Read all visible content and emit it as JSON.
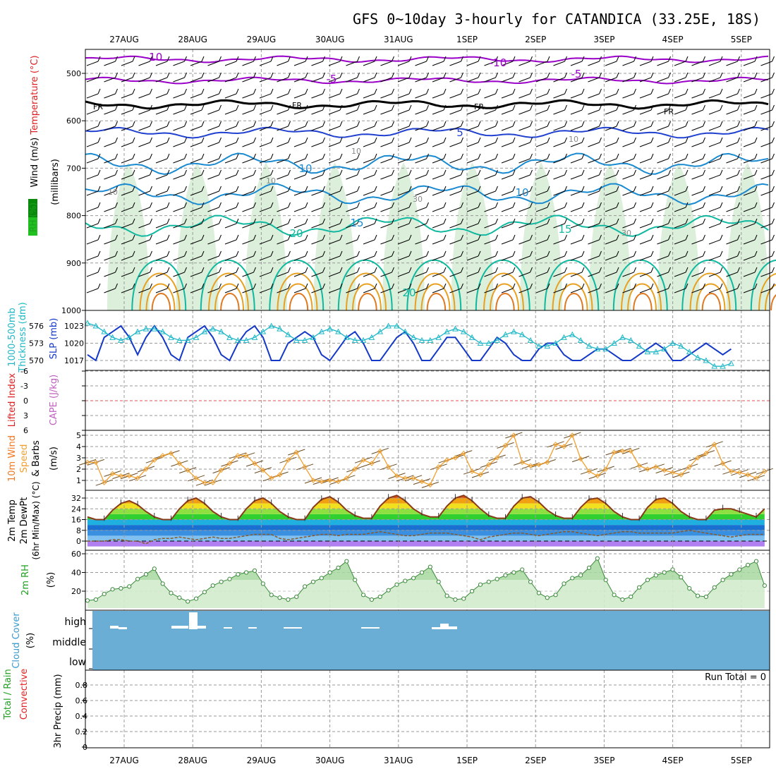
{
  "title": "GFS 0~10day 3-hourly for CATANDICA (33.25E, 18S)",
  "colors": {
    "frame": "#000000",
    "grid": "#9a9a9a",
    "purple": "#9a00c8",
    "black_contour": "#000000",
    "blue5": "#2040d0",
    "blue10": "#1a8ad0",
    "teal": "#10b8a0",
    "orange": "#e8a020",
    "rh_fill": "#cfe9cf",
    "slp": "#1438c8",
    "thickness": "#20b8c8",
    "cape_zero": "#e05050",
    "wind10m": "#f0a030",
    "rh2m_line": "#20a020",
    "cloud_bg": "#6aaed6",
    "cloud_bar": "#ffffff"
  },
  "chart_data": {
    "type": "meteogram",
    "dates": [
      "27AUG",
      "28AUG",
      "29AUG",
      "30AUG",
      "31AUG",
      "1SEP",
      "2SEP",
      "3SEP",
      "4SEP",
      "5SEP"
    ],
    "panels": [
      {
        "id": "upper_air",
        "labels": [
          {
            "text": "Wind (m/s)",
            "color": "#000000"
          },
          {
            "text": "Temperature (°C)",
            "color": "#e02020"
          },
          {
            "text": "RH (%)",
            "color": "#20a020"
          },
          {
            "text": "(millibars)",
            "color": "#000000"
          }
        ],
        "yticks": [
          "500",
          "600",
          "700",
          "800",
          "900",
          "1000"
        ],
        "contour_labels": [
          {
            "text": "-10",
            "color": "#9a00c8"
          },
          {
            "text": "-10",
            "color": "#9a00c8"
          },
          {
            "text": "-5",
            "color": "#9a00c8"
          },
          {
            "text": "-5",
            "color": "#9a00c8"
          },
          {
            "text": "FR",
            "color": "#000000"
          },
          {
            "text": "FR",
            "color": "#000000"
          },
          {
            "text": "FR",
            "color": "#000000"
          },
          {
            "text": "FR",
            "color": "#000000"
          },
          {
            "text": "5",
            "color": "#2040d0"
          },
          {
            "text": "10",
            "color": "#1a8ad0"
          },
          {
            "text": "10",
            "color": "#1a8ad0"
          },
          {
            "text": "15",
            "color": "#1a8ad0"
          },
          {
            "text": "15",
            "color": "#10b8a0"
          },
          {
            "text": "20",
            "color": "#10b8a0"
          },
          {
            "text": "20",
            "color": "#10b8a0"
          },
          {
            "text": "10",
            "color": "#888888"
          },
          {
            "text": "10",
            "color": "#888888"
          },
          {
            "text": "10",
            "color": "#888888"
          },
          {
            "text": "10",
            "color": "#888888"
          },
          {
            "text": "30",
            "color": "#888888"
          },
          {
            "text": "30",
            "color": "#888888"
          }
        ]
      },
      {
        "id": "slp_thickness",
        "labels": [
          {
            "text": "1000-500mb",
            "color": "#20b8c8"
          },
          {
            "text": "Thickness (dm)",
            "color": "#20b8c8"
          },
          {
            "text": "SLP (mb)",
            "color": "#1438c8"
          }
        ],
        "yticks_left": [
          "576",
          "573",
          "570"
        ],
        "yticks_right": [
          "1023",
          "1020",
          "1017"
        ],
        "slp": [
          1018,
          1017,
          1021,
          1022,
          1023,
          1021,
          1018,
          1021,
          1023,
          1021,
          1018,
          1017,
          1021,
          1022,
          1023,
          1021,
          1018,
          1017,
          1020,
          1022,
          1023,
          1021,
          1017,
          1017,
          1020,
          1021,
          1022,
          1021,
          1018,
          1017,
          1019,
          1021,
          1022,
          1020,
          1017,
          1017,
          1019,
          1021,
          1022,
          1020,
          1017,
          1017,
          1019,
          1021,
          1021,
          1019,
          1017,
          1017,
          1019,
          1021,
          1020,
          1018,
          1017,
          1017,
          1019,
          1020,
          1020,
          1018,
          1017,
          1017,
          1018,
          1019,
          1019,
          1018,
          1017,
          1017,
          1018,
          1019,
          1020,
          1019,
          1017,
          1017,
          1018,
          1019,
          1020,
          1019,
          1018,
          1019
        ],
        "thickness": [
          576.5,
          576.0,
          575.0,
          574.0,
          573.5,
          574.0,
          575.0,
          575.5,
          575.5,
          575.0,
          574.0,
          573.5,
          573.5,
          574.0,
          575.0,
          575.5,
          575.0,
          574.0,
          573.5,
          573.5,
          574.0,
          575.0,
          576.0,
          575.5,
          574.5,
          573.5,
          573.5,
          574.0,
          575.0,
          575.5,
          575.0,
          574.0,
          573.5,
          573.5,
          574.0,
          575.0,
          576.0,
          576.0,
          575.0,
          574.0,
          573.5,
          573.5,
          574.0,
          575.0,
          575.5,
          575.0,
          574.0,
          573.0,
          573.0,
          573.5,
          574.5,
          575.0,
          574.5,
          573.5,
          572.5,
          572.5,
          573.0,
          574.0,
          574.5,
          573.5,
          572.5,
          572.0,
          572.0,
          573.0,
          574.0,
          573.5,
          572.5,
          571.5,
          571.5,
          572.0,
          573.0,
          572.5,
          571.5,
          570.5,
          570.0,
          569.0,
          569.0,
          569.5
        ]
      },
      {
        "id": "cape",
        "labels": [
          {
            "text": "Lifted Index",
            "color": "#e02020"
          },
          {
            "text": "CAPE (J/kg)",
            "color": "#c060c0"
          }
        ],
        "yticks": [
          "-6",
          "-3",
          "0",
          "3",
          "6"
        ]
      },
      {
        "id": "wind10m",
        "labels": [
          {
            "text": "10m Wind",
            "color": "#f07820"
          },
          {
            "text": "Speed",
            "color": "#f0a030"
          },
          {
            "text": "& Barbs",
            "color": "#000000"
          },
          {
            "text": "(m/s)",
            "color": "#000000"
          }
        ],
        "yticks": [
          "1",
          "2",
          "3",
          "4",
          "5"
        ],
        "speed": [
          2.6,
          2.6,
          0.8,
          1.6,
          1.4,
          1.4,
          1.2,
          2.0,
          2.8,
          3.2,
          3.4,
          2.5,
          1.9,
          1.2,
          0.8,
          0.8,
          1.9,
          2.5,
          3.2,
          3.2,
          2.5,
          1.9,
          1.2,
          1.5,
          2.8,
          3.5,
          2.2,
          1.0,
          0.9,
          1.0,
          0.9,
          1.2,
          2.0,
          2.8,
          2.5,
          3.6,
          2.2,
          1.4,
          1.2,
          1.2,
          0.9,
          0.6,
          2.2,
          2.8,
          3.0,
          3.4,
          1.8,
          1.5,
          2.4,
          3.0,
          4.1,
          5.0,
          2.6,
          2.3,
          2.4,
          2.6,
          4.2,
          4.0,
          5.0,
          2.9,
          1.8,
          1.4,
          2.0,
          3.5,
          3.6,
          3.6,
          2.3,
          2.0,
          2.2,
          1.9,
          1.7,
          1.5,
          2.2,
          3.0,
          3.4,
          4.2,
          2.5,
          1.8,
          1.7,
          1.5,
          1.2,
          1.8
        ]
      },
      {
        "id": "temp2m",
        "labels": [
          {
            "text": "2m Temp",
            "color": "#000000"
          },
          {
            "text": "2m DewPt",
            "color": "#000000"
          },
          {
            "text": "(6hr Min/Max) (°C)",
            "color": "#000000"
          }
        ],
        "yticks": [
          "0",
          "8",
          "16",
          "24",
          "32"
        ],
        "temp": [
          18,
          16,
          16,
          23,
          28,
          30,
          27,
          22,
          18,
          16,
          16,
          24,
          30,
          32,
          28,
          22,
          18,
          16,
          16,
          24,
          30,
          32,
          28,
          22,
          18,
          16,
          16,
          25,
          31,
          33,
          29,
          23,
          19,
          17,
          17,
          26,
          32,
          34,
          30,
          24,
          20,
          18,
          18,
          26,
          32,
          34,
          30,
          24,
          19,
          17,
          17,
          26,
          32,
          33,
          29,
          23,
          19,
          17,
          17,
          25,
          31,
          32,
          28,
          22,
          18,
          16,
          16,
          25,
          31,
          32,
          28,
          22,
          18,
          16,
          16,
          23,
          24,
          24,
          22,
          20,
          18,
          24
        ],
        "dewpt": [
          0,
          0,
          0,
          1,
          1,
          0,
          0,
          -2,
          1,
          2,
          2,
          3,
          2,
          1,
          2,
          3,
          2,
          2,
          3,
          4,
          5,
          5,
          5,
          2,
          1,
          2,
          3,
          4,
          5,
          5,
          4,
          5,
          5,
          5,
          6,
          7,
          6,
          5,
          4,
          4,
          5,
          6,
          6,
          6,
          5,
          4,
          3,
          1,
          3,
          4,
          5,
          6,
          6,
          5,
          4,
          5,
          6,
          7,
          7,
          6,
          5,
          4,
          5,
          6,
          7,
          7,
          6,
          6,
          6,
          6,
          6,
          7,
          8,
          7,
          6,
          5,
          4,
          3,
          4,
          5,
          5,
          5
        ]
      },
      {
        "id": "rh2m",
        "labels": [
          {
            "text": "2m RH",
            "color": "#20a020"
          },
          {
            "text": "(%)",
            "color": "#000000"
          }
        ],
        "yticks": [
          "20",
          "40",
          "60"
        ],
        "rh": [
          10,
          11,
          17,
          22,
          23,
          25,
          33,
          38,
          44,
          28,
          18,
          13,
          9,
          12,
          19,
          26,
          30,
          33,
          38,
          40,
          42,
          28,
          16,
          13,
          11,
          14,
          25,
          30,
          34,
          40,
          45,
          52,
          32,
          16,
          11,
          14,
          21,
          27,
          31,
          34,
          40,
          46,
          30,
          15,
          11,
          12,
          20,
          27,
          30,
          33,
          37,
          40,
          43,
          30,
          18,
          13,
          16,
          28,
          34,
          37,
          45,
          55,
          32,
          16,
          11,
          14,
          24,
          32,
          37,
          40,
          43,
          35,
          23,
          15,
          14,
          24,
          32,
          38,
          43,
          48,
          52,
          26
        ],
        "colors": [
          "#20a020"
        ]
      },
      {
        "id": "cloud",
        "labels": [
          {
            "text": "Cloud Cover",
            "color": "#3a9ad0"
          },
          {
            "text": "(%)",
            "color": "#000000"
          }
        ],
        "yticks": [
          "high",
          "middle",
          "low"
        ]
      },
      {
        "id": "precip",
        "labels": [
          {
            "text": "Total / Rain",
            "color": "#20a020"
          },
          {
            "text": "Convective",
            "color": "#e02020"
          },
          {
            "text": "3hr Precip (mm)",
            "color": "#000000"
          }
        ],
        "yticks": [
          "0",
          "0.2",
          "0.4",
          "0.6",
          "0.8"
        ],
        "annotation": "Run Total = 0"
      }
    ]
  }
}
